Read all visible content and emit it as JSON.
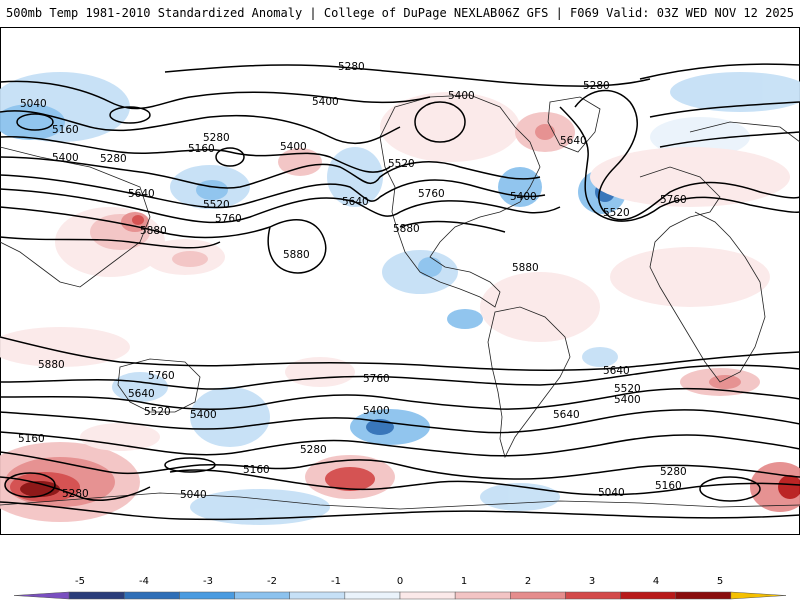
{
  "header": {
    "left_title": "500mb Temp 1981-2010 Standardized Anomaly | College of DuPage NEXLAB",
    "right_title": "06Z GFS | F069 Valid: 03Z WED NOV 12 2025"
  },
  "map": {
    "contour_labels": [
      "5280",
      "5400",
      "5040",
      "5160",
      "5280",
      "5400",
      "5160",
      "5280",
      "5400",
      "5520",
      "5640",
      "5760",
      "5880",
      "5400",
      "5640",
      "5880",
      "5520",
      "5640",
      "5760",
      "5880",
      "5280",
      "5400",
      "5520",
      "5640",
      "5760",
      "5880",
      "5400",
      "5520",
      "5640",
      "5760",
      "5160",
      "5280",
      "5400",
      "5040",
      "5160",
      "5280",
      "5040",
      "5160",
      "5280",
      "5400",
      "5520",
      "5640",
      "5760",
      "5880"
    ],
    "colors": {
      "contour": "#000000",
      "coast": "#222222",
      "ocean": "#ffffff"
    }
  },
  "colorbar": {
    "ticks": [
      "-5",
      "-4",
      "-3",
      "-2",
      "-1",
      "0",
      "1",
      "2",
      "3",
      "4",
      "5"
    ],
    "colors": [
      "#7a4fc0",
      "#2a3d7a",
      "#2f6fb7",
      "#4a9be0",
      "#8cc2ee",
      "#c6e0f6",
      "#eaf3fb",
      "#fbe9e9",
      "#f3c4c4",
      "#e58d8d",
      "#d34a4a",
      "#b81a1a",
      "#8a0d0d",
      "#f5c000"
    ]
  }
}
